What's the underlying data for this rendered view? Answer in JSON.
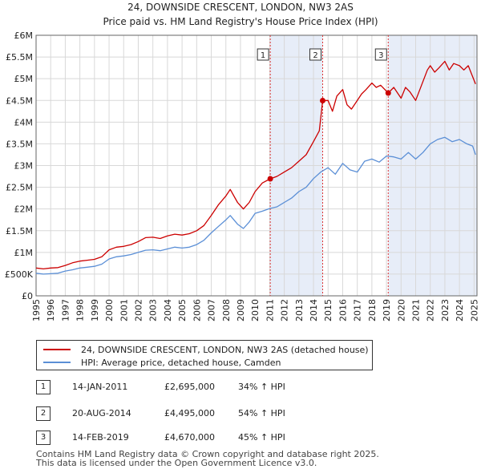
{
  "chart_data": {
    "type": "line",
    "title": "24, DOWNSIDE CRESCENT, LONDON, NW3 2AS",
    "subtitle": "Price paid vs. HM Land Registry's House Price Index (HPI)",
    "xlim": [
      1995,
      2025.2
    ],
    "ylim": [
      0,
      6000000
    ],
    "x_ticks": [
      1995,
      1996,
      1997,
      1998,
      1999,
      2000,
      2001,
      2002,
      2003,
      2004,
      2005,
      2006,
      2007,
      2008,
      2009,
      2010,
      2011,
      2012,
      2013,
      2014,
      2015,
      2016,
      2017,
      2018,
      2019,
      2020,
      2021,
      2022,
      2023,
      2024,
      2025
    ],
    "y_ticks": [
      {
        "value": 0,
        "label": "£0"
      },
      {
        "value": 500000,
        "label": "£500K"
      },
      {
        "value": 1000000,
        "label": "£1M"
      },
      {
        "value": 1500000,
        "label": "£1.5M"
      },
      {
        "value": 2000000,
        "label": "£2M"
      },
      {
        "value": 2500000,
        "label": "£2.5M"
      },
      {
        "value": 3000000,
        "label": "£3M"
      },
      {
        "value": 3500000,
        "label": "£3.5M"
      },
      {
        "value": 4000000,
        "label": "£4M"
      },
      {
        "value": 4500000,
        "label": "£4.5M"
      },
      {
        "value": 5000000,
        "label": "£5M"
      },
      {
        "value": 5500000,
        "label": "£5.5M"
      },
      {
        "value": 6000000,
        "label": "£6M"
      }
    ],
    "series": [
      {
        "name": "24, DOWNSIDE CRESCENT, LONDON, NW3 2AS (detached house)",
        "color": "#cc0000",
        "points": [
          [
            1995.0,
            640000
          ],
          [
            1995.5,
            620000
          ],
          [
            1996.0,
            640000
          ],
          [
            1996.5,
            650000
          ],
          [
            1997.0,
            700000
          ],
          [
            1997.5,
            760000
          ],
          [
            1998.0,
            800000
          ],
          [
            1998.5,
            820000
          ],
          [
            1999.0,
            840000
          ],
          [
            1999.5,
            900000
          ],
          [
            2000.0,
            1060000
          ],
          [
            2000.5,
            1120000
          ],
          [
            2001.0,
            1140000
          ],
          [
            2001.5,
            1180000
          ],
          [
            2002.0,
            1250000
          ],
          [
            2002.5,
            1340000
          ],
          [
            2003.0,
            1350000
          ],
          [
            2003.5,
            1320000
          ],
          [
            2004.0,
            1380000
          ],
          [
            2004.5,
            1420000
          ],
          [
            2005.0,
            1400000
          ],
          [
            2005.5,
            1430000
          ],
          [
            2006.0,
            1500000
          ],
          [
            2006.5,
            1620000
          ],
          [
            2007.0,
            1850000
          ],
          [
            2007.5,
            2100000
          ],
          [
            2008.0,
            2300000
          ],
          [
            2008.3,
            2450000
          ],
          [
            2008.8,
            2150000
          ],
          [
            2009.2,
            2000000
          ],
          [
            2009.6,
            2150000
          ],
          [
            2010.0,
            2400000
          ],
          [
            2010.5,
            2600000
          ],
          [
            2011.04,
            2695000
          ],
          [
            2011.5,
            2750000
          ],
          [
            2012.0,
            2850000
          ],
          [
            2012.5,
            2950000
          ],
          [
            2013.0,
            3100000
          ],
          [
            2013.5,
            3250000
          ],
          [
            2014.0,
            3550000
          ],
          [
            2014.4,
            3800000
          ],
          [
            2014.63,
            4495000
          ],
          [
            2015.0,
            4500000
          ],
          [
            2015.3,
            4250000
          ],
          [
            2015.6,
            4600000
          ],
          [
            2016.0,
            4750000
          ],
          [
            2016.3,
            4400000
          ],
          [
            2016.6,
            4300000
          ],
          [
            2017.0,
            4500000
          ],
          [
            2017.3,
            4650000
          ],
          [
            2017.6,
            4750000
          ],
          [
            2018.0,
            4900000
          ],
          [
            2018.3,
            4800000
          ],
          [
            2018.6,
            4850000
          ],
          [
            2019.12,
            4670000
          ],
          [
            2019.5,
            4800000
          ],
          [
            2020.0,
            4550000
          ],
          [
            2020.3,
            4800000
          ],
          [
            2020.6,
            4700000
          ],
          [
            2021.0,
            4500000
          ],
          [
            2021.4,
            4850000
          ],
          [
            2021.8,
            5200000
          ],
          [
            2022.0,
            5300000
          ],
          [
            2022.3,
            5150000
          ],
          [
            2022.6,
            5250000
          ],
          [
            2023.0,
            5400000
          ],
          [
            2023.3,
            5200000
          ],
          [
            2023.6,
            5350000
          ],
          [
            2024.0,
            5300000
          ],
          [
            2024.3,
            5200000
          ],
          [
            2024.6,
            5300000
          ],
          [
            2024.9,
            5050000
          ],
          [
            2025.1,
            4880000
          ]
        ]
      },
      {
        "name": "HPI: Average price, detached house, Camden",
        "color": "#5b8fd6",
        "points": [
          [
            1995.0,
            520000
          ],
          [
            1995.5,
            500000
          ],
          [
            1996.0,
            510000
          ],
          [
            1996.5,
            520000
          ],
          [
            1997.0,
            570000
          ],
          [
            1997.5,
            600000
          ],
          [
            1998.0,
            640000
          ],
          [
            1998.5,
            660000
          ],
          [
            1999.0,
            680000
          ],
          [
            1999.5,
            730000
          ],
          [
            2000.0,
            850000
          ],
          [
            2000.5,
            900000
          ],
          [
            2001.0,
            920000
          ],
          [
            2001.5,
            950000
          ],
          [
            2002.0,
            1000000
          ],
          [
            2002.5,
            1050000
          ],
          [
            2003.0,
            1060000
          ],
          [
            2003.5,
            1040000
          ],
          [
            2004.0,
            1080000
          ],
          [
            2004.5,
            1120000
          ],
          [
            2005.0,
            1100000
          ],
          [
            2005.5,
            1120000
          ],
          [
            2006.0,
            1180000
          ],
          [
            2006.5,
            1280000
          ],
          [
            2007.0,
            1450000
          ],
          [
            2007.5,
            1600000
          ],
          [
            2008.0,
            1750000
          ],
          [
            2008.3,
            1850000
          ],
          [
            2008.8,
            1650000
          ],
          [
            2009.2,
            1550000
          ],
          [
            2009.6,
            1700000
          ],
          [
            2010.0,
            1900000
          ],
          [
            2010.5,
            1950000
          ],
          [
            2011.0,
            2010000
          ],
          [
            2011.5,
            2050000
          ],
          [
            2012.0,
            2150000
          ],
          [
            2012.5,
            2250000
          ],
          [
            2013.0,
            2400000
          ],
          [
            2013.5,
            2500000
          ],
          [
            2014.0,
            2700000
          ],
          [
            2014.5,
            2850000
          ],
          [
            2015.0,
            2950000
          ],
          [
            2015.5,
            2800000
          ],
          [
            2016.0,
            3050000
          ],
          [
            2016.5,
            2900000
          ],
          [
            2017.0,
            2850000
          ],
          [
            2017.5,
            3100000
          ],
          [
            2018.0,
            3150000
          ],
          [
            2018.5,
            3080000
          ],
          [
            2019.0,
            3220000
          ],
          [
            2019.5,
            3200000
          ],
          [
            2020.0,
            3150000
          ],
          [
            2020.5,
            3300000
          ],
          [
            2021.0,
            3150000
          ],
          [
            2021.5,
            3300000
          ],
          [
            2022.0,
            3500000
          ],
          [
            2022.5,
            3600000
          ],
          [
            2023.0,
            3650000
          ],
          [
            2023.5,
            3550000
          ],
          [
            2024.0,
            3600000
          ],
          [
            2024.5,
            3500000
          ],
          [
            2024.9,
            3450000
          ],
          [
            2025.1,
            3250000
          ]
        ]
      }
    ],
    "sales": [
      {
        "label": "1",
        "x": 2011.04,
        "y": 2695000
      },
      {
        "label": "2",
        "x": 2014.63,
        "y": 4495000
      },
      {
        "label": "3",
        "x": 2019.12,
        "y": 4670000
      }
    ],
    "shaded_ranges": [
      [
        2011.04,
        2014.63
      ],
      [
        2019.12,
        2025.2
      ]
    ]
  },
  "legend": {
    "property_label": "24, DOWNSIDE CRESCENT, LONDON, NW3 2AS (detached house)",
    "hpi_label": "HPI: Average price, detached house, Camden"
  },
  "sales_table": [
    {
      "num": "1",
      "date": "14-JAN-2011",
      "price": "£2,695,000",
      "hpi": "34% ↑ HPI"
    },
    {
      "num": "2",
      "date": "20-AUG-2014",
      "price": "£4,495,000",
      "hpi": "54% ↑ HPI"
    },
    {
      "num": "3",
      "date": "14-FEB-2019",
      "price": "£4,670,000",
      "hpi": "45% ↑ HPI"
    }
  ],
  "footer": {
    "line1": "Contains HM Land Registry data © Crown copyright and database right 2025.",
    "line2": "This data is licensed under the Open Government Licence v3.0."
  }
}
